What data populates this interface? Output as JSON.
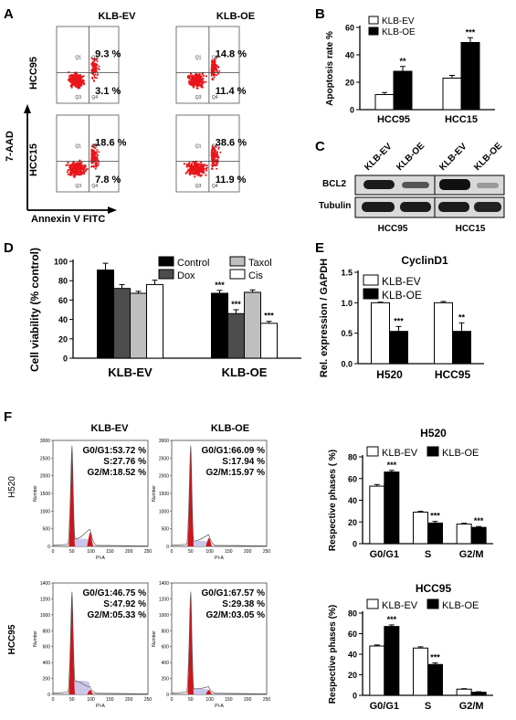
{
  "panels": {
    "A": {
      "label": "A",
      "columns": [
        "KLB-EV",
        "KLB-OE"
      ],
      "rows": [
        "HCC95",
        "HCC15"
      ],
      "y_axis_label": "7-AAD",
      "x_axis_label": "Annexin V FITC",
      "quadrant_labels": [
        "Q1",
        "Q2",
        "Q3",
        "Q4"
      ],
      "quadrant_values": [
        {
          "row": "HCC95",
          "col": "KLB-EV",
          "upper": "9.3 %",
          "lower": "3.1 %"
        },
        {
          "row": "HCC95",
          "col": "KLB-OE",
          "upper": "14.8 %",
          "lower": "11.4 %"
        },
        {
          "row": "HCC15",
          "col": "KLB-EV",
          "upper": "18.6 %",
          "lower": "7.8 %"
        },
        {
          "row": "HCC15",
          "col": "KLB-OE",
          "upper": "38.6 %",
          "lower": "11.9 %"
        }
      ],
      "scatter_color": "#e8151b"
    },
    "B": {
      "label": "B"
    },
    "C": {
      "label": "C",
      "lanes": [
        "KLB-EV",
        "KLB-OE",
        "KLB-EV",
        "KLB-OE"
      ],
      "proteins": [
        "BCL2",
        "Tubulin"
      ],
      "groups": [
        "HCC95",
        "HCC15"
      ]
    },
    "D": {
      "label": "D"
    },
    "E": {
      "label": "E"
    },
    "F": {
      "label": "F",
      "columns": [
        "KLB-EV",
        "KLB-OE"
      ],
      "rows": [
        "H520",
        "HCC95"
      ],
      "x_axis_label": "PI-A",
      "y_axis_label": "Number",
      "histograms": [
        {
          "row": "H520",
          "col": "KLB-EV",
          "ymax": 3000,
          "yticks": [
            0,
            500,
            1000,
            1500,
            2000,
            2500,
            3000
          ],
          "g0g1": "G0/G1:53.72 %",
          "s": "S:27.76 %",
          "g2m": "G2/M:18.52 %"
        },
        {
          "row": "H520",
          "col": "KLB-OE",
          "ymax": 3000,
          "yticks": [
            0,
            500,
            1000,
            1500,
            2000,
            2500,
            3000
          ],
          "g0g1": "G0/G1:66.09 %",
          "s": "S:17.94 %",
          "g2m": "G2/M:15.97 %"
        },
        {
          "row": "HCC95",
          "col": "KLB-EV",
          "ymax": 1400,
          "yticks": [
            0,
            200,
            400,
            600,
            800,
            1000,
            1200,
            1400
          ],
          "g0g1": "G0/G1:46.75 %",
          "s": "S:47.92 %",
          "g2m": "G2/M:05.33 %"
        },
        {
          "row": "HCC95",
          "col": "KLB-OE",
          "ymax": 1400,
          "yticks": [
            0,
            200,
            400,
            600,
            800,
            1000,
            1200,
            1400
          ],
          "g0g1": "G0/G1:67.57 %",
          "s": "S:29.38 %",
          "g2m": "G2/M:03.05 %"
        }
      ],
      "xticks": [
        0,
        50,
        100,
        150,
        200,
        250
      ]
    }
  },
  "chart_data": [
    {
      "id": "B",
      "type": "bar",
      "categories": [
        "HCC95",
        "HCC15"
      ],
      "series": [
        {
          "name": "KLB-EV",
          "values": [
            11,
            23
          ],
          "errors": [
            1.5,
            2
          ],
          "fill": "#ffffff"
        },
        {
          "name": "KLB-OE",
          "values": [
            28,
            49
          ],
          "errors": [
            3.5,
            3.5
          ],
          "fill": "#000000"
        }
      ],
      "significance": [
        {
          "category": "HCC95",
          "label": "**"
        },
        {
          "category": "HCC15",
          "label": "***"
        }
      ],
      "ylabel": "Apoptosis rate %",
      "ylim": [
        0,
        60
      ],
      "yticks": [
        0,
        20,
        40,
        60
      ],
      "legend": "top-left"
    },
    {
      "id": "D",
      "type": "bar",
      "categories": [
        "KLB-EV",
        "KLB-OE"
      ],
      "series": [
        {
          "name": "Control",
          "values": [
            91,
            67
          ],
          "errors": [
            7,
            3
          ],
          "fill": "#000000"
        },
        {
          "name": "Dox",
          "values": [
            72,
            46
          ],
          "errors": [
            4,
            4
          ],
          "fill": "#4d4d4d"
        },
        {
          "name": "Taxol",
          "values": [
            67,
            68
          ],
          "errors": [
            2,
            2.5
          ],
          "fill": "#bfbfbf"
        },
        {
          "name": "Cis",
          "values": [
            76,
            36
          ],
          "errors": [
            4.5,
            2
          ],
          "fill": "#ffffff"
        }
      ],
      "significance": [
        {
          "category": "KLB-OE",
          "series": "Control",
          "label": "***"
        },
        {
          "category": "KLB-OE",
          "series": "Dox",
          "label": "***"
        },
        {
          "category": "KLB-OE",
          "series": "Cis",
          "label": "***"
        }
      ],
      "ylabel": "Cell viability (% control)",
      "ylim": [
        0,
        100
      ],
      "yticks": [
        0,
        20,
        40,
        60,
        80,
        100
      ],
      "legend": "top"
    },
    {
      "id": "E",
      "type": "bar",
      "title": "CyclinD1",
      "categories": [
        "H520",
        "HCC95"
      ],
      "series": [
        {
          "name": "KLB-EV",
          "values": [
            1.0,
            1.0
          ],
          "errors": [
            0.01,
            0.02
          ],
          "fill": "#ffffff"
        },
        {
          "name": "KLB-OE",
          "values": [
            0.53,
            0.53
          ],
          "errors": [
            0.08,
            0.14
          ],
          "fill": "#000000"
        }
      ],
      "significance": [
        {
          "category": "H520",
          "label": "***"
        },
        {
          "category": "HCC95",
          "label": "**"
        }
      ],
      "ylabel": "Rel. expression / GAPDH",
      "ylim": [
        0,
        1.5
      ],
      "yticks": [
        0.0,
        0.5,
        1.0,
        1.5
      ],
      "legend": "top-right"
    },
    {
      "id": "F-H520",
      "type": "bar",
      "title": "H520",
      "categories": [
        "G0/G1",
        "S",
        "G2/M"
      ],
      "series": [
        {
          "name": "KLB-EV",
          "values": [
            53,
            29,
            18
          ],
          "errors": [
            1.5,
            0.8,
            0.8
          ],
          "fill": "#ffffff"
        },
        {
          "name": "KLB-OE",
          "values": [
            66,
            19,
            15
          ],
          "errors": [
            1.5,
            1.5,
            0.8
          ],
          "fill": "#000000"
        }
      ],
      "significance": [
        {
          "category": "G0/G1",
          "label": "***"
        },
        {
          "category": "S",
          "label": "***"
        },
        {
          "category": "G2/M",
          "label": "***"
        }
      ],
      "ylabel": "Respective phases ( %)",
      "ylim": [
        0,
        80
      ],
      "yticks": [
        0,
        20,
        40,
        60,
        80
      ],
      "legend": "top"
    },
    {
      "id": "F-HCC95",
      "type": "bar",
      "title": "HCC95",
      "categories": [
        "G0/G1",
        "S",
        "G2/M"
      ],
      "series": [
        {
          "name": "KLB-EV",
          "values": [
            48,
            46,
            6
          ],
          "errors": [
            1,
            1.2,
            0.5
          ],
          "fill": "#ffffff"
        },
        {
          "name": "KLB-OE",
          "values": [
            67,
            30,
            3
          ],
          "errors": [
            1.5,
            1.5,
            0.5
          ],
          "fill": "#000000"
        }
      ],
      "significance": [
        {
          "category": "G0/G1",
          "label": "***"
        },
        {
          "category": "S",
          "label": "***"
        }
      ],
      "ylabel": "Respective phases (%)",
      "ylim": [
        0,
        80
      ],
      "yticks": [
        0,
        20,
        40,
        60,
        80
      ],
      "legend": "top"
    }
  ]
}
